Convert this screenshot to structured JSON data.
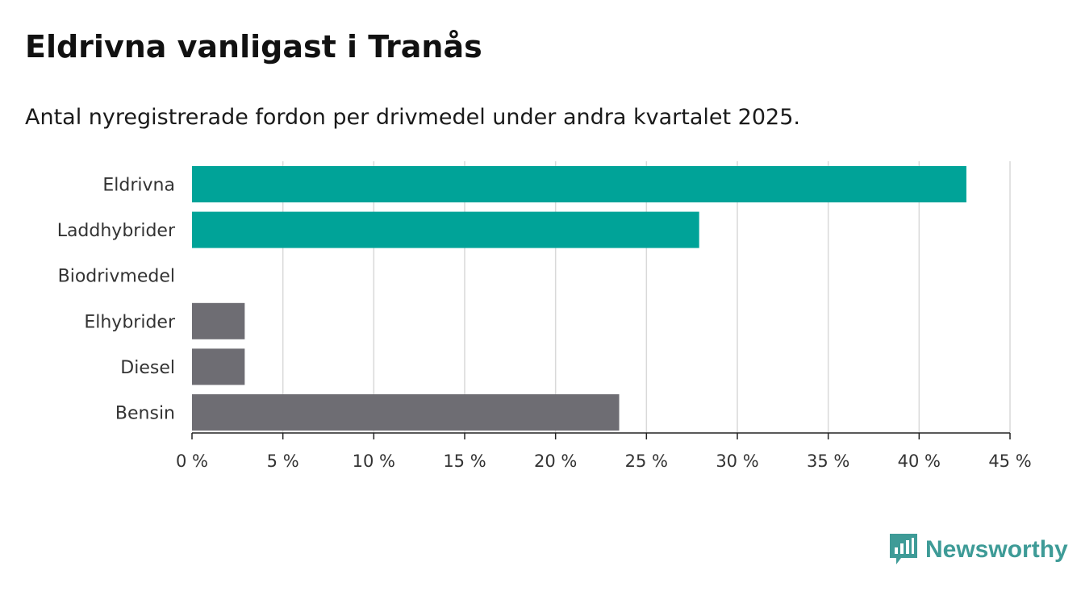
{
  "chart_data": {
    "type": "bar",
    "orientation": "horizontal",
    "title": "Eldrivna vanligast i Tranås",
    "subtitle": "Antal nyregistrerade fordon per drivmedel under andra kvartalet 2025.",
    "categories": [
      "Eldrivna",
      "Laddhybrider",
      "Biodrivmedel",
      "Elhybrider",
      "Diesel",
      "Bensin"
    ],
    "values": [
      42.6,
      27.9,
      0,
      2.9,
      2.9,
      23.5
    ],
    "bar_colors": [
      "#00a398",
      "#00a398",
      "#00a398",
      "#6e6d73",
      "#6e6d73",
      "#6e6d73"
    ],
    "xlim": [
      0,
      45
    ],
    "x_ticks": [
      0,
      5,
      10,
      15,
      20,
      25,
      30,
      35,
      40,
      45
    ],
    "x_tick_labels": [
      "0 %",
      "5 %",
      "10 %",
      "15 %",
      "20 %",
      "25 %",
      "30 %",
      "35 %",
      "40 %",
      "45 %"
    ],
    "grid": "vertical",
    "xlabel": "",
    "ylabel": ""
  },
  "brand": {
    "name": "Newsworthy",
    "color": "#3e9b97",
    "icon": "bar-chart-icon"
  }
}
